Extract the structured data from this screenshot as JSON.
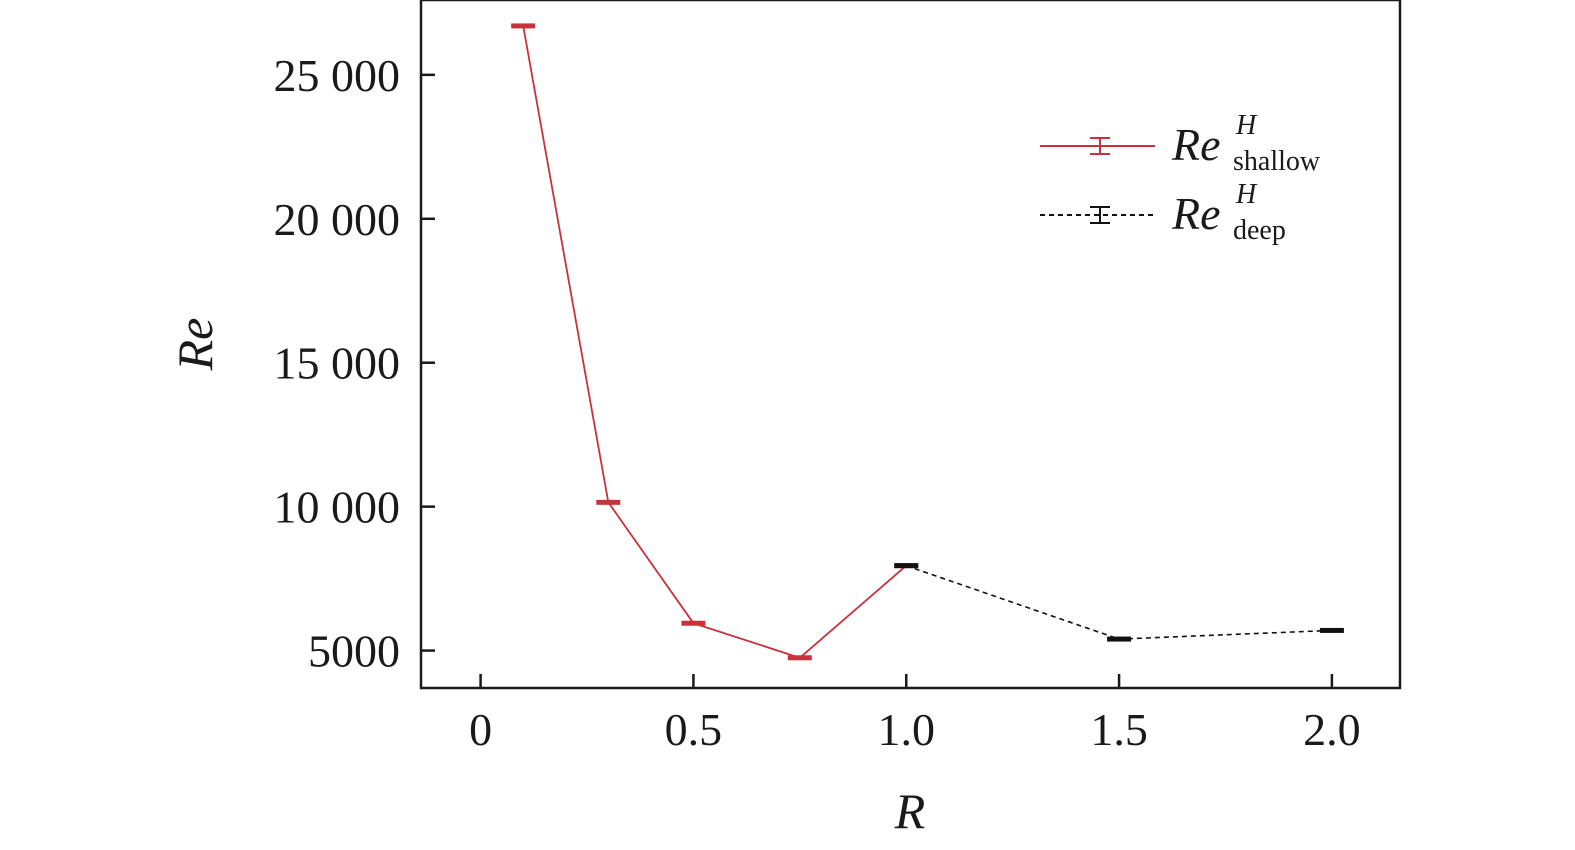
{
  "chart_data": {
    "type": "line",
    "xlabel": "R",
    "ylabel": "Re",
    "xlim": [
      -0.14,
      2.16
    ],
    "ylim": [
      3700,
      27600
    ],
    "xticks": [
      0,
      0.5,
      1.0,
      1.5,
      2.0
    ],
    "xtick_labels": [
      "0",
      "0.5",
      "1.0",
      "1.5",
      "2.0"
    ],
    "yticks": [
      5000,
      10000,
      15000,
      20000,
      25000
    ],
    "ytick_labels": [
      "5000",
      "10 000",
      "15 000",
      "20 000",
      "25 000"
    ],
    "grid": false,
    "legend_position": "top-right",
    "series": [
      {
        "name": "Re",
        "sub": "shallow",
        "sup": "H",
        "color": "#c8323c",
        "dash": "solid",
        "x": [
          0.1,
          0.3,
          0.5,
          0.75,
          1.0
        ],
        "y": [
          26700,
          10150,
          5950,
          4750,
          7950
        ]
      },
      {
        "name": "Re",
        "sub": "deep",
        "sup": "H",
        "color": "#111111",
        "dash": "dashed",
        "x": [
          1.0,
          1.5,
          2.0
        ],
        "y": [
          7950,
          5400,
          5700
        ]
      }
    ]
  }
}
